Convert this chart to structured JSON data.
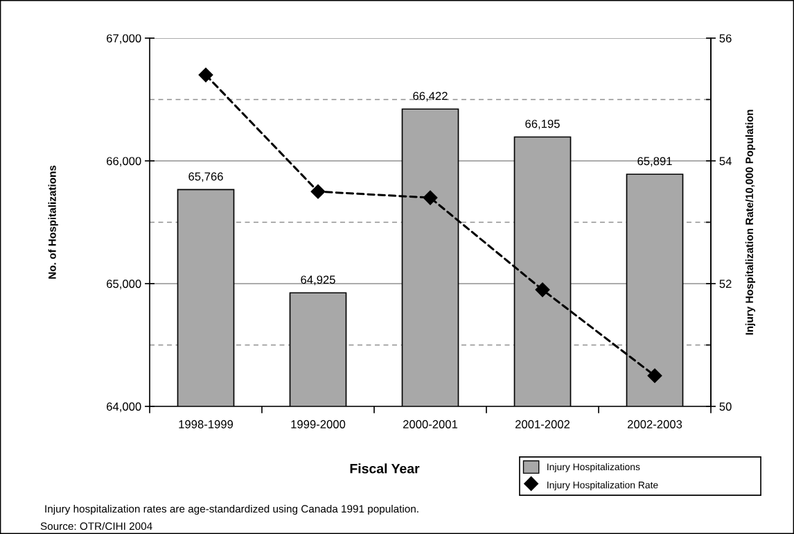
{
  "chart_data": {
    "type": "bar",
    "xlabel": "Fiscal Year",
    "ylabel": "No. of Hospitalizations",
    "y2label": "Injury Hospitalization Rate/10,000 Population",
    "categories": [
      "1998-1999",
      "1999-2000",
      "2000-2001",
      "2001-2002",
      "2002-2003"
    ],
    "series": [
      {
        "name": "Injury Hospitalizations",
        "color": "#a8a8a8",
        "values": [
          65766,
          64925,
          66422,
          66195,
          65891
        ],
        "value_labels": [
          "65,766",
          "64,925",
          "66,422",
          "66,195",
          "65,891"
        ]
      },
      {
        "name": "Injury Hospitalization Rate",
        "type": "line",
        "axis": "y2",
        "color": "#000000",
        "values": [
          55.4,
          53.5,
          53.4,
          51.9,
          50.5
        ]
      }
    ],
    "ylim": [
      64000,
      67000
    ],
    "yticks": [
      {
        "value": 64000,
        "label": "64,000"
      },
      {
        "value": 65000,
        "label": "65,000"
      },
      {
        "value": 66000,
        "label": "66,000"
      },
      {
        "value": 67000,
        "label": "67,000"
      }
    ],
    "y2lim": [
      50,
      56
    ],
    "y2ticks": [
      50,
      {
        "value": 51,
        "label": null
      },
      52,
      {
        "value": 53,
        "label": null
      },
      54,
      {
        "value": 55,
        "label": null
      },
      56
    ],
    "marker": "diamond",
    "line_style": "dashed",
    "grid": true,
    "legend": "bottom right",
    "annotations": [
      "Injury hospitalization rates are age-standardized using Canada 1991 population.",
      "Source: OTR/CIHI 2004"
    ]
  }
}
